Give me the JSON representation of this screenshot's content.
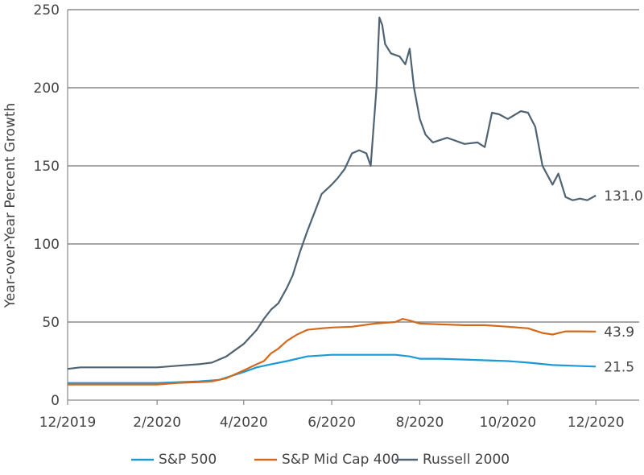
{
  "chart_data": {
    "type": "line",
    "ylabel": "Year-over-Year Percent Growth",
    "xlabel": "",
    "ylim": [
      0,
      250
    ],
    "yticks": [
      0,
      50,
      100,
      150,
      200,
      250
    ],
    "xlim": [
      "2019-12-01",
      "2020-12-31"
    ],
    "xticks": [
      {
        "date": "2019-12-01",
        "label": "12/2019"
      },
      {
        "date": "2020-02-01",
        "label": "2/2020"
      },
      {
        "date": "2020-04-01",
        "label": "4/2020"
      },
      {
        "date": "2020-06-01",
        "label": "6/2020"
      },
      {
        "date": "2020-08-01",
        "label": "8/2020"
      },
      {
        "date": "2020-10-01",
        "label": "10/2020"
      },
      {
        "date": "2020-12-01",
        "label": "12/2020"
      }
    ],
    "grid": "horizontal",
    "legend_position": "bottom",
    "series": [
      {
        "name": "S&P 500",
        "color": "#1a9ad6",
        "end_label": "21.5",
        "points": [
          [
            "2019-12-01",
            11
          ],
          [
            "2020-01-01",
            11
          ],
          [
            "2020-02-01",
            11
          ],
          [
            "2020-02-15",
            11.5
          ],
          [
            "2020-03-01",
            12
          ],
          [
            "2020-03-15",
            13
          ],
          [
            "2020-04-01",
            18
          ],
          [
            "2020-04-10",
            21
          ],
          [
            "2020-04-20",
            23
          ],
          [
            "2020-05-01",
            25
          ],
          [
            "2020-05-15",
            28
          ],
          [
            "2020-06-01",
            29
          ],
          [
            "2020-06-15",
            29
          ],
          [
            "2020-07-01",
            29
          ],
          [
            "2020-07-15",
            29
          ],
          [
            "2020-07-25",
            28
          ],
          [
            "2020-08-01",
            26.5
          ],
          [
            "2020-08-15",
            26.5
          ],
          [
            "2020-09-01",
            26
          ],
          [
            "2020-09-15",
            25.5
          ],
          [
            "2020-10-01",
            25
          ],
          [
            "2020-10-15",
            24
          ],
          [
            "2020-11-01",
            22.5
          ],
          [
            "2020-11-15",
            22
          ],
          [
            "2020-12-01",
            21.5
          ]
        ]
      },
      {
        "name": "S&P Mid Cap 400",
        "color": "#d4691b",
        "end_label": "43.9",
        "points": [
          [
            "2019-12-01",
            10
          ],
          [
            "2020-01-01",
            10
          ],
          [
            "2020-02-01",
            10
          ],
          [
            "2020-02-15",
            11
          ],
          [
            "2020-03-01",
            11.5
          ],
          [
            "2020-03-10",
            12
          ],
          [
            "2020-03-20",
            14
          ],
          [
            "2020-04-01",
            19
          ],
          [
            "2020-04-10",
            23
          ],
          [
            "2020-04-15",
            25
          ],
          [
            "2020-04-20",
            30
          ],
          [
            "2020-04-25",
            33
          ],
          [
            "2020-05-01",
            38
          ],
          [
            "2020-05-08",
            42
          ],
          [
            "2020-05-15",
            45
          ],
          [
            "2020-05-25",
            46
          ],
          [
            "2020-06-01",
            46.5
          ],
          [
            "2020-06-15",
            47
          ],
          [
            "2020-07-01",
            49
          ],
          [
            "2020-07-15",
            50
          ],
          [
            "2020-07-20",
            52
          ],
          [
            "2020-07-25",
            51
          ],
          [
            "2020-08-01",
            49
          ],
          [
            "2020-08-15",
            48.5
          ],
          [
            "2020-09-01",
            48
          ],
          [
            "2020-09-15",
            48
          ],
          [
            "2020-10-01",
            47
          ],
          [
            "2020-10-15",
            46
          ],
          [
            "2020-10-25",
            43
          ],
          [
            "2020-11-01",
            42
          ],
          [
            "2020-11-10",
            44
          ],
          [
            "2020-11-20",
            44
          ],
          [
            "2020-12-01",
            43.9
          ]
        ]
      },
      {
        "name": "Russell 2000",
        "color": "#506373",
        "end_label": "131.0",
        "points": [
          [
            "2019-12-01",
            20
          ],
          [
            "2019-12-10",
            21
          ],
          [
            "2020-01-01",
            21
          ],
          [
            "2020-01-20",
            21
          ],
          [
            "2020-02-01",
            21
          ],
          [
            "2020-02-15",
            22
          ],
          [
            "2020-03-01",
            23
          ],
          [
            "2020-03-10",
            24
          ],
          [
            "2020-03-20",
            28
          ],
          [
            "2020-04-01",
            36
          ],
          [
            "2020-04-10",
            45
          ],
          [
            "2020-04-15",
            52
          ],
          [
            "2020-04-20",
            58
          ],
          [
            "2020-04-25",
            62
          ],
          [
            "2020-05-01",
            72
          ],
          [
            "2020-05-05",
            80
          ],
          [
            "2020-05-10",
            95
          ],
          [
            "2020-05-15",
            108
          ],
          [
            "2020-05-20",
            120
          ],
          [
            "2020-05-25",
            132
          ],
          [
            "2020-06-01",
            138
          ],
          [
            "2020-06-05",
            142
          ],
          [
            "2020-06-10",
            148
          ],
          [
            "2020-06-15",
            158
          ],
          [
            "2020-06-20",
            160
          ],
          [
            "2020-06-25",
            158
          ],
          [
            "2020-06-28",
            150
          ],
          [
            "2020-07-02",
            200
          ],
          [
            "2020-07-04",
            245
          ],
          [
            "2020-07-06",
            240
          ],
          [
            "2020-07-08",
            228
          ],
          [
            "2020-07-12",
            222
          ],
          [
            "2020-07-18",
            220
          ],
          [
            "2020-07-22",
            215
          ],
          [
            "2020-07-25",
            225
          ],
          [
            "2020-07-28",
            200
          ],
          [
            "2020-08-01",
            180
          ],
          [
            "2020-08-05",
            170
          ],
          [
            "2020-08-10",
            165
          ],
          [
            "2020-08-20",
            168
          ],
          [
            "2020-09-01",
            164
          ],
          [
            "2020-09-10",
            165
          ],
          [
            "2020-09-15",
            162
          ],
          [
            "2020-09-20",
            184
          ],
          [
            "2020-09-25",
            183
          ],
          [
            "2020-10-01",
            180
          ],
          [
            "2020-10-10",
            185
          ],
          [
            "2020-10-15",
            184
          ],
          [
            "2020-10-20",
            175
          ],
          [
            "2020-10-25",
            150
          ],
          [
            "2020-11-01",
            138
          ],
          [
            "2020-11-05",
            145
          ],
          [
            "2020-11-10",
            130
          ],
          [
            "2020-11-15",
            128
          ],
          [
            "2020-11-20",
            129
          ],
          [
            "2020-11-25",
            128
          ],
          [
            "2020-12-01",
            131
          ]
        ]
      }
    ]
  }
}
